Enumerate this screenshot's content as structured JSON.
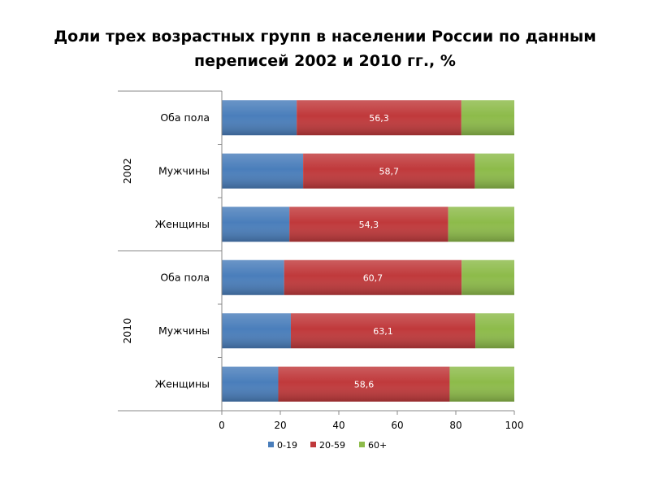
{
  "chart_data": {
    "type": "bar",
    "orientation": "horizontal",
    "stacked": true,
    "title_lines": [
      "Доли трех возрастных групп в населении России по данным",
      "переписей 2002 и 2010 гг., %"
    ],
    "groups": [
      {
        "name": "2002",
        "categories": [
          "Оба пола",
          "Мужчины",
          "Женщины"
        ]
      },
      {
        "name": "2010",
        "categories": [
          "Оба пола",
          "Мужчины",
          "Женщины"
        ]
      }
    ],
    "series": [
      {
        "name": "0-19",
        "color": "#4a7ebb",
        "values": [
          25.6,
          27.8,
          23.1,
          21.3,
          23.6,
          19.3
        ]
      },
      {
        "name": "20-59",
        "color": "#c0393b",
        "values": [
          56.3,
          58.7,
          54.3,
          60.7,
          63.1,
          58.6
        ]
      },
      {
        "name": "60+",
        "color": "#8dbb4a",
        "values": [
          18.1,
          13.5,
          22.6,
          18.0,
          13.3,
          22.1
        ]
      }
    ],
    "data_labels_series": "20-59",
    "xlim": [
      0,
      100
    ],
    "xticks": [
      0,
      20,
      40,
      60,
      80,
      100
    ],
    "grid": false,
    "legend_position": "bottom"
  }
}
